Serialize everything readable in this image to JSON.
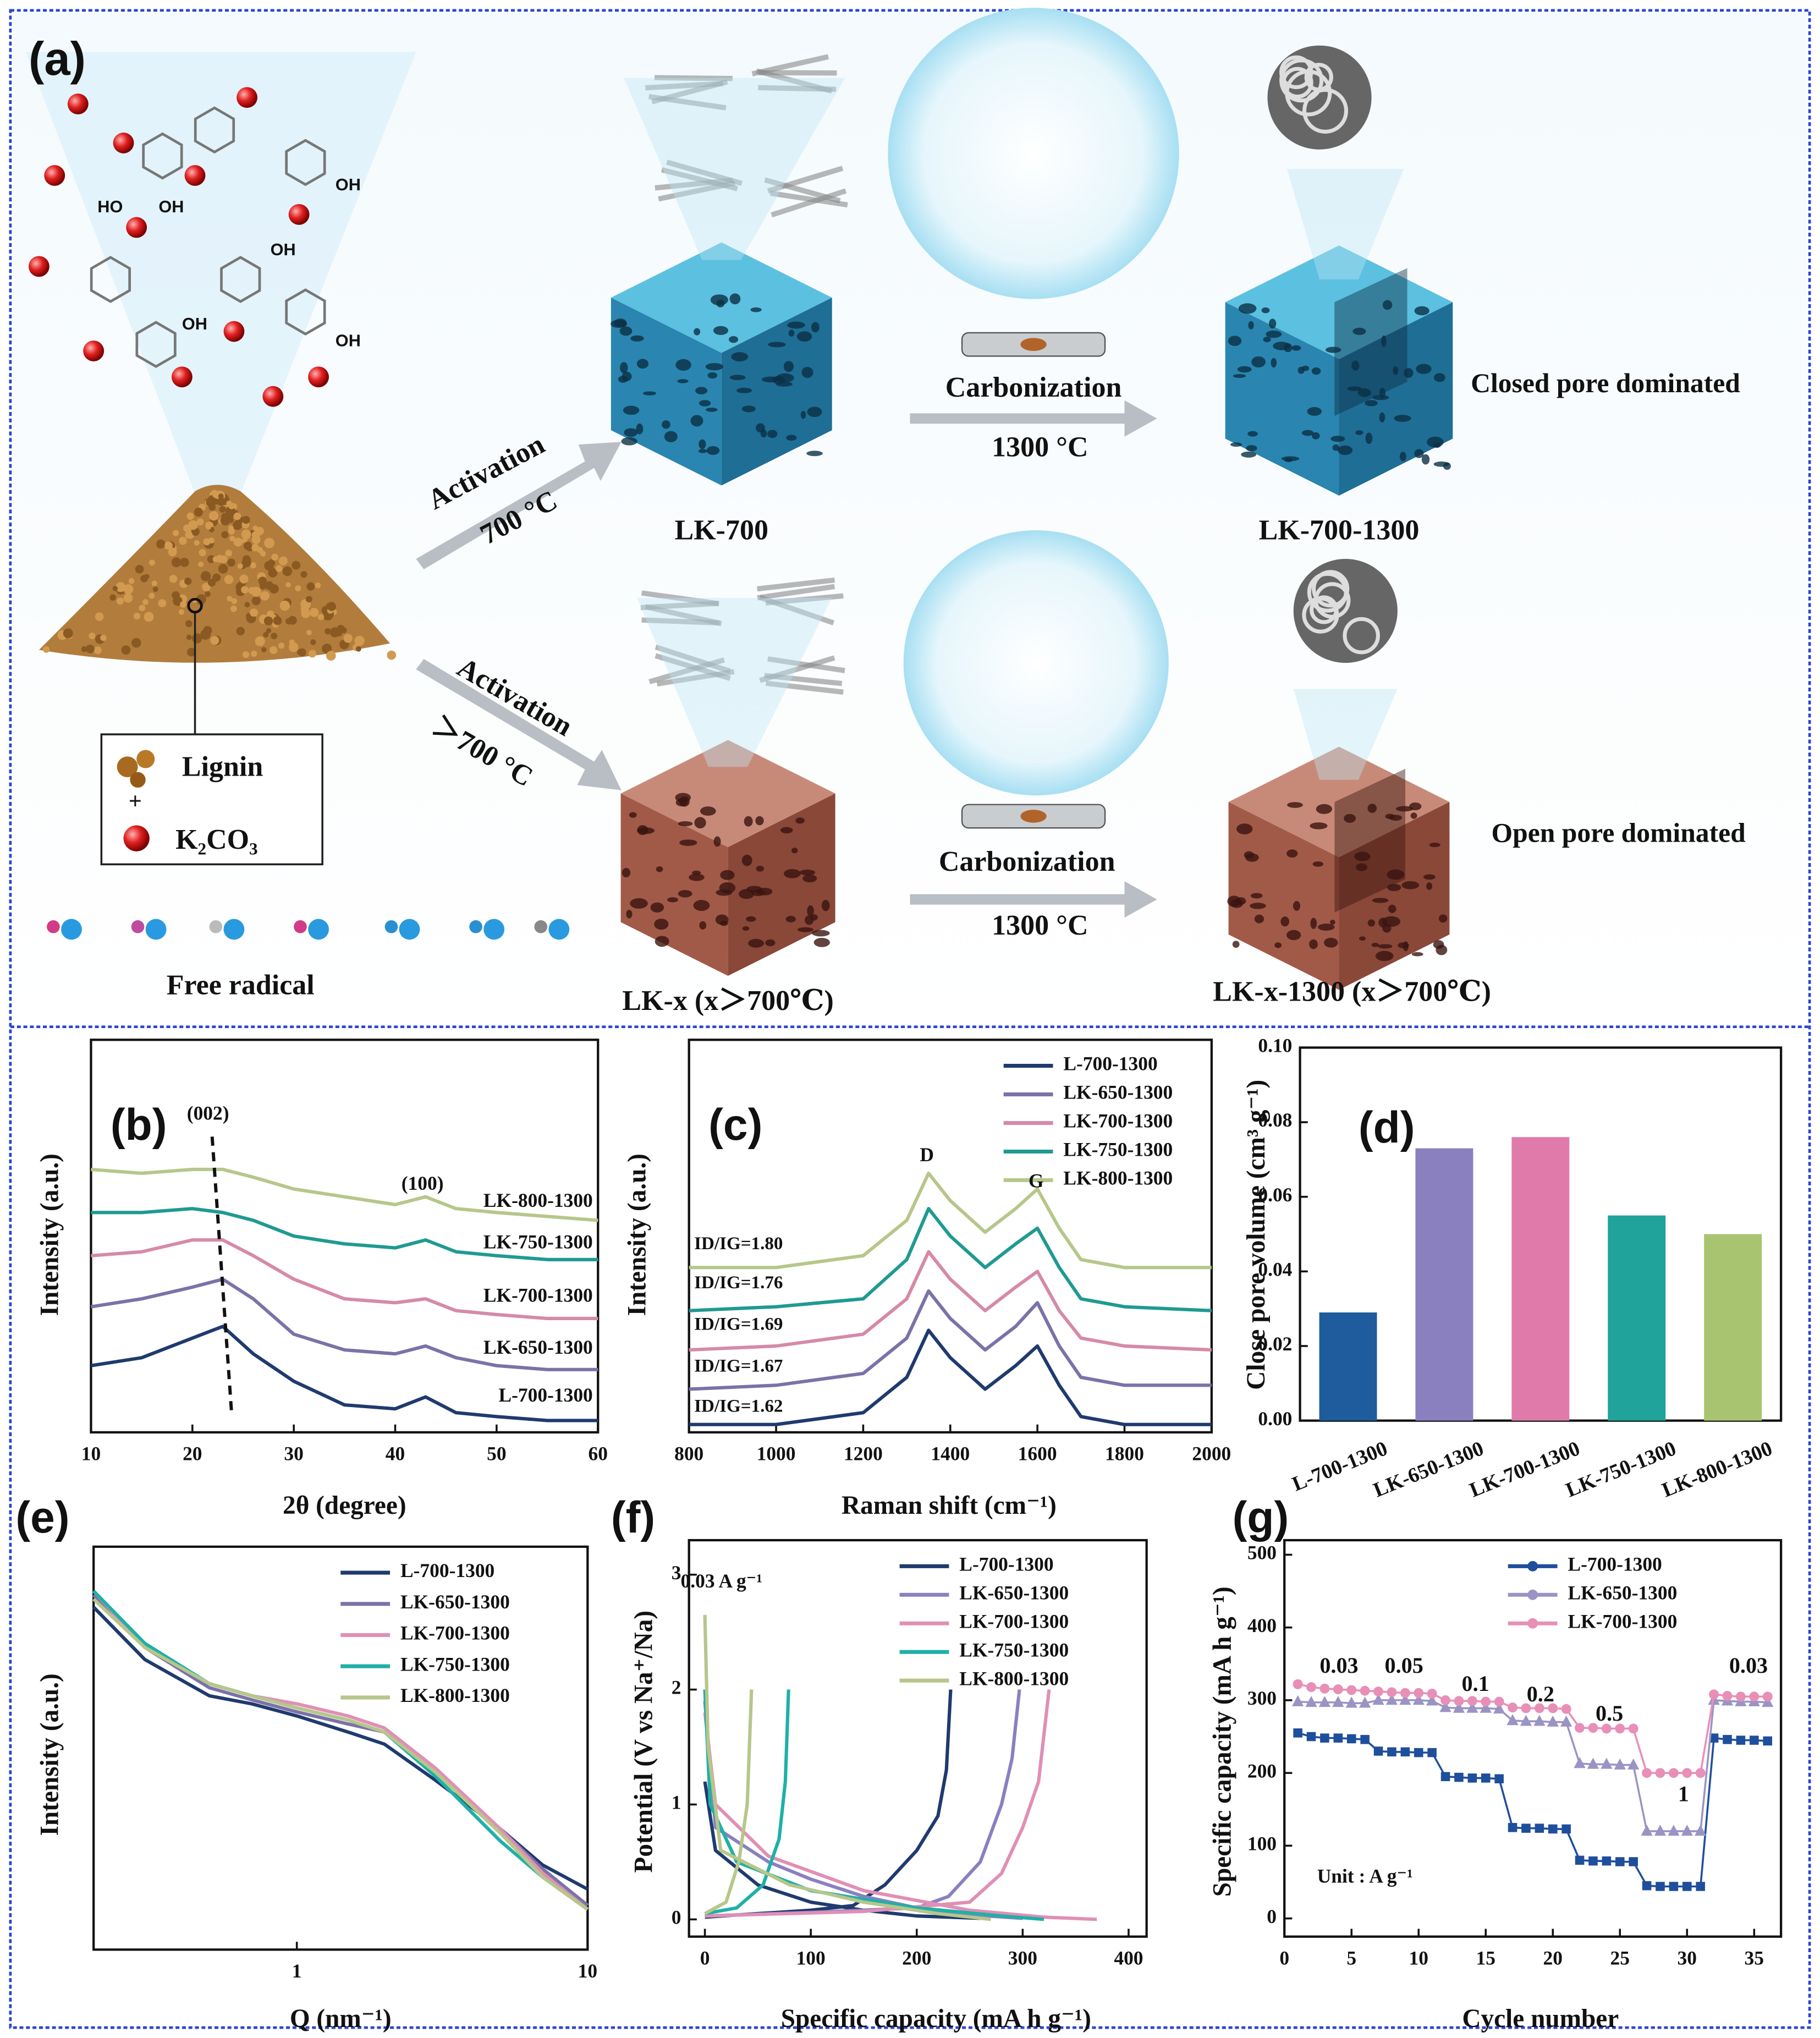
{
  "diagram": {
    "panel_label": "(a)",
    "molecule_labels": [
      "HO",
      "OH",
      "OH",
      "OH",
      "OH",
      "OH"
    ],
    "legend_box": {
      "lignin": "Lignin",
      "plus": "+",
      "k2co3": "K₂CO₃"
    },
    "free_radical": "Free radical",
    "upper_route": {
      "activation": "Activation",
      "activation_temp": "700 °C",
      "product": "LK-700",
      "carbonization": "Carbonization",
      "carbonization_temp": "1300 °C",
      "final_product": "LK-700-1300",
      "outcome": "Closed pore dominated"
    },
    "lower_route": {
      "activation": "Activation",
      "activation_temp": "＞700 °C",
      "product": "LK-x (x＞700℃)",
      "carbonization": "Carbonization",
      "carbonization_temp": "1300 °C",
      "final_product": "LK-x-1300 (x＞700℃)",
      "outcome": "Open pore dominated"
    }
  },
  "chart_data": [
    {
      "type": "line",
      "panel_label": "(b)",
      "xlabel": "2θ (degree)",
      "ylabel": "Intensity (a.u.)",
      "legend": "inline",
      "x": [
        10,
        15,
        20,
        23,
        26,
        30,
        35,
        40,
        43,
        46,
        50,
        55,
        60
      ],
      "xlim": [
        10,
        60
      ],
      "xticks": [
        10,
        20,
        30,
        40,
        50,
        60
      ],
      "ylim": [
        0,
        10
      ],
      "annotations": [
        "(002)",
        "(100)"
      ],
      "series": [
        {
          "name": "L-700-1300",
          "color": "#1f3a6e",
          "values": [
            1.7,
            1.9,
            2.4,
            2.7,
            2.0,
            1.3,
            0.7,
            0.6,
            0.9,
            0.5,
            0.4,
            0.3,
            0.3
          ]
        },
        {
          "name": "LK-650-1300",
          "color": "#7b72a8",
          "values": [
            3.2,
            3.4,
            3.7,
            3.9,
            3.4,
            2.5,
            2.1,
            2.0,
            2.2,
            1.9,
            1.7,
            1.6,
            1.6
          ]
        },
        {
          "name": "LK-700-1300",
          "color": "#d58aa8",
          "values": [
            4.5,
            4.6,
            4.9,
            4.9,
            4.5,
            3.9,
            3.4,
            3.3,
            3.4,
            3.1,
            3.0,
            2.9,
            2.9
          ]
        },
        {
          "name": "LK-750-1300",
          "color": "#1f9a92",
          "values": [
            5.6,
            5.6,
            5.7,
            5.6,
            5.4,
            5.0,
            4.8,
            4.7,
            4.9,
            4.6,
            4.5,
            4.4,
            4.4
          ]
        },
        {
          "name": "LK-800-1300",
          "color": "#b7c68a",
          "values": [
            6.7,
            6.6,
            6.7,
            6.7,
            6.5,
            6.2,
            6.0,
            5.8,
            6.0,
            5.7,
            5.6,
            5.5,
            5.4
          ]
        }
      ]
    },
    {
      "type": "line",
      "panel_label": "(c)",
      "xlabel": "Raman shift (cm⁻¹)",
      "ylabel": "Intensity (a.u.)",
      "legend": "upper right",
      "x": [
        800,
        1000,
        1200,
        1300,
        1350,
        1400,
        1480,
        1550,
        1600,
        1650,
        1700,
        1800,
        2000
      ],
      "xlim": [
        800,
        2000
      ],
      "xticks": [
        800,
        1000,
        1200,
        1400,
        1600,
        1800,
        2000
      ],
      "ylim": [
        0,
        10
      ],
      "annotations": [
        "D",
        "G"
      ],
      "ratio_labels": [
        "ID/IG=1.62",
        "ID/IG=1.67",
        "ID/IG=1.69",
        "ID/IG=1.76",
        "ID/IG=1.80"
      ],
      "series": [
        {
          "name": "L-700-1300",
          "color": "#1f3a6e",
          "values": [
            0.2,
            0.2,
            0.5,
            1.4,
            2.6,
            1.9,
            1.1,
            1.7,
            2.2,
            1.2,
            0.4,
            0.2,
            0.2
          ]
        },
        {
          "name": "LK-650-1300",
          "color": "#7b72a8",
          "values": [
            1.1,
            1.2,
            1.5,
            2.4,
            3.6,
            2.9,
            2.1,
            2.7,
            3.3,
            2.2,
            1.4,
            1.2,
            1.2
          ]
        },
        {
          "name": "LK-700-1300",
          "color": "#d58aa8",
          "values": [
            2.1,
            2.2,
            2.5,
            3.4,
            4.6,
            3.9,
            3.1,
            3.7,
            4.1,
            3.1,
            2.4,
            2.2,
            2.1
          ]
        },
        {
          "name": "LK-750-1300",
          "color": "#1f9a92",
          "values": [
            3.1,
            3.2,
            3.4,
            4.4,
            5.7,
            5.0,
            4.2,
            4.8,
            5.2,
            4.2,
            3.4,
            3.2,
            3.1
          ]
        },
        {
          "name": "LK-800-1300",
          "color": "#b7c68a",
          "values": [
            4.2,
            4.2,
            4.5,
            5.4,
            6.6,
            5.9,
            5.1,
            5.7,
            6.2,
            5.2,
            4.4,
            4.2,
            4.2
          ]
        }
      ]
    },
    {
      "type": "bar",
      "panel_label": "(d)",
      "ylabel": "Close pore volume (cm³ g⁻¹)",
      "categories": [
        "L-700-1300",
        "LK-650-1300",
        "LK-700-1300",
        "LK-750-1300",
        "LK-800-1300"
      ],
      "values": [
        0.029,
        0.073,
        0.076,
        0.055,
        0.05
      ],
      "colors": [
        "#1e5c9e",
        "#8a80c0",
        "#e07aaa",
        "#1fa39a",
        "#a8c470"
      ],
      "ylim": [
        0,
        0.1
      ],
      "yticks": [
        {
          "value": 0,
          "label": "0.00"
        },
        {
          "value": 0.02,
          "label": "0.02"
        },
        {
          "value": 0.04,
          "label": "0.04"
        },
        {
          "value": 0.06,
          "label": "0.06"
        },
        {
          "value": 0.08,
          "label": "0.08"
        },
        {
          "value": 0.1,
          "label": "0.10"
        }
      ]
    },
    {
      "type": "line",
      "panel_label": "(e)",
      "xlabel": "Q (nm⁻¹)",
      "ylabel": "Intensity (a.u.)",
      "legend": "upper right",
      "xscale": "log",
      "x": [
        0.2,
        0.3,
        0.5,
        0.7,
        1,
        1.5,
        2,
        3,
        5,
        7,
        10
      ],
      "xlim": [
        0.2,
        10
      ],
      "xticks": [
        1,
        10
      ],
      "ylim": [
        0,
        10
      ],
      "series": [
        {
          "name": "L-700-1300",
          "color": "#1f3a6e",
          "values": [
            8.5,
            7.2,
            6.3,
            6.1,
            5.8,
            5.4,
            5.1,
            4.2,
            3.0,
            2.1,
            1.5
          ]
        },
        {
          "name": "LK-650-1300",
          "color": "#7b72a8",
          "values": [
            8.8,
            7.5,
            6.5,
            6.2,
            5.9,
            5.6,
            5.4,
            4.4,
            3.0,
            2.0,
            1.1
          ]
        },
        {
          "name": "LK-700-1300",
          "color": "#e08fb5",
          "values": [
            8.9,
            7.5,
            6.6,
            6.3,
            6.1,
            5.8,
            5.5,
            4.5,
            3.0,
            1.9,
            1.0
          ]
        },
        {
          "name": "LK-750-1300",
          "color": "#1fb0a8",
          "values": [
            8.9,
            7.6,
            6.6,
            6.3,
            6.0,
            5.7,
            5.4,
            4.3,
            2.7,
            1.8,
            1.0
          ]
        },
        {
          "name": "LK-800-1300",
          "color": "#b7c68a",
          "values": [
            8.7,
            7.5,
            6.6,
            6.3,
            6.0,
            5.7,
            5.4,
            4.4,
            2.9,
            1.8,
            1.0
          ]
        }
      ]
    },
    {
      "type": "line",
      "panel_label": "(f)",
      "xlabel": "Specific capacity (mA h g⁻¹)",
      "ylabel": "Potential (V vs Na⁺/Na)",
      "legend": "upper right",
      "xlim": [
        -15,
        417
      ],
      "xticks": [
        0,
        100,
        200,
        300,
        400
      ],
      "ylim": [
        -0.15,
        3.3
      ],
      "yticks": [
        0,
        1,
        2,
        3
      ],
      "annotations": [
        "0.03 A g⁻¹"
      ],
      "series": [
        {
          "name": "L-700-1300",
          "color": "#1f3a6e",
          "x": [
            0,
            10,
            50,
            100,
            150,
            200,
            260,
            null,
            0,
            50,
            100,
            140,
            170,
            200,
            220,
            228,
            232
          ],
          "values": [
            1.2,
            0.6,
            0.3,
            0.15,
            0.08,
            0.03,
            0.01,
            null,
            0.02,
            0.05,
            0.08,
            0.12,
            0.3,
            0.6,
            0.9,
            1.3,
            2.0
          ]
        },
        {
          "name": "LK-650-1300",
          "color": "#8a80c0",
          "x": [
            0,
            10,
            60,
            100,
            150,
            200,
            250,
            300,
            null,
            0,
            100,
            200,
            230,
            260,
            280,
            290,
            297
          ],
          "values": [
            1.9,
            0.8,
            0.5,
            0.35,
            0.2,
            0.1,
            0.04,
            0.01,
            null,
            0.03,
            0.06,
            0.1,
            0.2,
            0.5,
            1.0,
            1.4,
            2.0
          ]
        },
        {
          "name": "LK-700-1300",
          "color": "#e08fb5",
          "x": [
            0,
            10,
            60,
            150,
            250,
            320,
            370,
            null,
            0,
            150,
            250,
            280,
            300,
            315,
            325
          ],
          "values": [
            1.8,
            1.0,
            0.55,
            0.25,
            0.08,
            0.02,
            0.0,
            null,
            0.03,
            0.07,
            0.15,
            0.4,
            0.8,
            1.2,
            2.0
          ]
        },
        {
          "name": "LK-750-1300",
          "color": "#1fb0a8",
          "x": [
            0,
            5,
            30,
            100,
            200,
            280,
            320,
            null,
            0,
            30,
            55,
            70,
            76,
            79
          ],
          "values": [
            2.0,
            1.0,
            0.5,
            0.25,
            0.1,
            0.03,
            0.0,
            null,
            0.05,
            0.1,
            0.3,
            0.7,
            1.2,
            2.0
          ]
        },
        {
          "name": "LK-800-1300",
          "color": "#b7c68a",
          "x": [
            0,
            3,
            15,
            80,
            150,
            220,
            270,
            null,
            0,
            20,
            32,
            40,
            44
          ],
          "values": [
            2.65,
            1.5,
            0.6,
            0.3,
            0.15,
            0.05,
            0.0,
            null,
            0.05,
            0.15,
            0.5,
            1.0,
            2.0
          ]
        }
      ]
    },
    {
      "type": "line",
      "panel_label": "(g)",
      "xlabel": "Cycle number",
      "ylabel": "Specific capacity (mA h g⁻¹)",
      "legend": "upper right",
      "x": [
        1,
        2,
        3,
        4,
        5,
        6,
        7,
        8,
        9,
        10,
        11,
        12,
        13,
        14,
        15,
        16,
        17,
        18,
        19,
        20,
        21,
        22,
        23,
        24,
        25,
        26,
        27,
        28,
        29,
        30,
        31,
        32,
        33,
        34,
        35,
        36
      ],
      "xlim": [
        0,
        37
      ],
      "xticks": [
        0,
        5,
        10,
        15,
        20,
        25,
        30,
        35
      ],
      "ylim": [
        -25,
        520
      ],
      "yticks": [
        0,
        100,
        200,
        300,
        400,
        500
      ],
      "annotations": [
        "0.03",
        "0.05",
        "0.1",
        "0.2",
        "0.5",
        "1",
        "0.03",
        "Unit : A g⁻¹"
      ],
      "series": [
        {
          "name": "L-700-1300",
          "color": "#1f4e9c",
          "marker": "square",
          "values": [
            255,
            250,
            248,
            248,
            247,
            246,
            230,
            229,
            229,
            228,
            228,
            195,
            194,
            193,
            193,
            192,
            125,
            124,
            124,
            123,
            123,
            80,
            79,
            79,
            78,
            78,
            45,
            44,
            44,
            44,
            44,
            248,
            246,
            245,
            245,
            244
          ]
        },
        {
          "name": "LK-650-1300",
          "color": "#9a94c4",
          "marker": "triangle",
          "values": [
            298,
            297,
            297,
            297,
            296,
            296,
            300,
            300,
            300,
            300,
            299,
            290,
            289,
            289,
            289,
            288,
            272,
            271,
            271,
            270,
            270,
            213,
            212,
            212,
            211,
            211,
            120,
            120,
            120,
            120,
            120,
            300,
            299,
            298,
            298,
            297
          ]
        },
        {
          "name": "LK-700-1300",
          "color": "#e88fb8",
          "marker": "circle",
          "values": [
            322,
            318,
            316,
            315,
            314,
            313,
            312,
            311,
            310,
            310,
            309,
            300,
            299,
            299,
            298,
            298,
            290,
            289,
            289,
            289,
            288,
            262,
            262,
            261,
            261,
            261,
            200,
            200,
            200,
            200,
            200,
            308,
            306,
            305,
            305,
            305
          ]
        }
      ]
    }
  ]
}
